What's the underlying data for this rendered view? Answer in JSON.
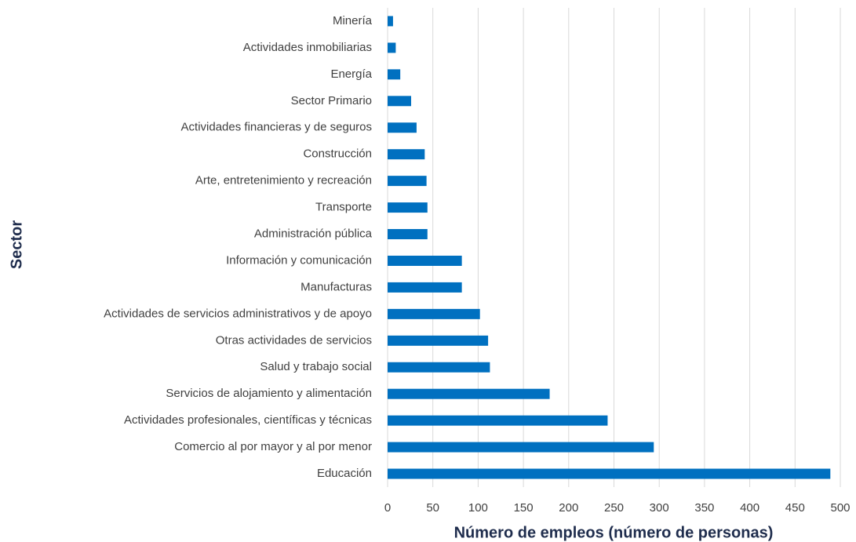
{
  "chart_data": {
    "type": "barh",
    "xlabel": "Número de empleos (número de personas)",
    "ylabel": "Sector",
    "categories": [
      "Minería",
      "Actividades inmobiliarias",
      "Energía",
      "Sector Primario",
      "Actividades financieras y de seguros",
      "Construcción",
      "Arte, entretenimiento y recreación",
      "Transporte",
      "Administración pública",
      "Información y comunicación",
      "Manufacturas",
      "Actividades de servicios administrativos y de apoyo",
      "Otras actividades de servicios",
      "Salud y trabajo social",
      "Servicios de alojamiento y alimentación",
      "Actividades profesionales, científicas y técnicas",
      "Comercio al por mayor y al por menor",
      "Educación"
    ],
    "values": [
      6,
      9,
      14,
      26,
      32,
      41,
      43,
      44,
      44,
      82,
      82,
      102,
      111,
      113,
      179,
      243,
      294,
      489
    ],
    "color": "#0070c0",
    "xlim": [
      0,
      500
    ],
    "xticks": [
      0,
      50,
      100,
      150,
      200,
      250,
      300,
      350,
      400,
      450,
      500
    ],
    "grid": true
  }
}
